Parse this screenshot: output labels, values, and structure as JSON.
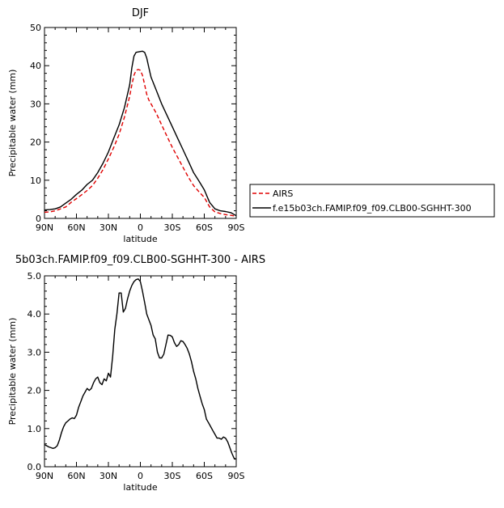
{
  "chart_data": [
    {
      "type": "line",
      "title": "DJF",
      "xlabel": "latitude",
      "ylabel": "Precipitable water (mm)",
      "x_categories": [
        "90N",
        "60N",
        "30N",
        "0",
        "30S",
        "60S",
        "90S"
      ],
      "x_ticks": [
        90,
        60,
        30,
        0,
        -30,
        -60,
        -90
      ],
      "xlim": [
        90,
        -90
      ],
      "ylim": [
        0,
        50
      ],
      "y_ticks": [
        0,
        10,
        20,
        30,
        40,
        50
      ],
      "y_tick_labels": [
        "0",
        "10",
        "20",
        "30",
        "40",
        "50"
      ],
      "grid": false,
      "legend": "right",
      "series": [
        {
          "name": "AIRS",
          "color": "#e00000",
          "dash": "dashed",
          "x": [
            90,
            85,
            80,
            75,
            70,
            65,
            60,
            55,
            50,
            45,
            40,
            35,
            30,
            25,
            20,
            15,
            10,
            8,
            6,
            4,
            2,
            0,
            -2,
            -4,
            -6,
            -8,
            -10,
            -15,
            -20,
            -25,
            -30,
            -35,
            -40,
            -45,
            -50,
            -55,
            -60,
            -65,
            -70,
            -75,
            -80,
            -85,
            -90
          ],
          "y": [
            1.6,
            1.7,
            2.0,
            2.5,
            3.0,
            4.2,
            5.2,
            6.2,
            7.3,
            8.6,
            10.5,
            12.8,
            15.6,
            18.6,
            22.0,
            26.5,
            32.0,
            35.0,
            37.5,
            38.8,
            39.0,
            38.8,
            37.5,
            35.0,
            32.5,
            31.0,
            30.0,
            27.5,
            24.5,
            21.5,
            18.6,
            16.0,
            13.4,
            10.8,
            8.6,
            7.0,
            5.5,
            3.0,
            1.7,
            1.3,
            1.0,
            0.8,
            0.6
          ]
        },
        {
          "name": "f.e15b03ch.FAMIP.f09_f09.CLB00-SGHHT-300",
          "color": "#000000",
          "dash": "solid",
          "x": [
            90,
            85,
            80,
            75,
            70,
            65,
            60,
            55,
            50,
            45,
            40,
            35,
            30,
            25,
            20,
            15,
            10,
            8,
            6,
            4,
            2,
            0,
            -2,
            -4,
            -6,
            -8,
            -10,
            -15,
            -20,
            -25,
            -30,
            -35,
            -40,
            -45,
            -50,
            -55,
            -60,
            -65,
            -70,
            -75,
            -80,
            -85,
            -90
          ],
          "y": [
            2.2,
            2.3,
            2.5,
            3.0,
            4.0,
            5.0,
            6.3,
            7.4,
            8.9,
            10.0,
            12.0,
            14.5,
            17.4,
            21.0,
            24.5,
            29.0,
            35.0,
            39.5,
            42.5,
            43.5,
            43.6,
            43.7,
            43.8,
            43.5,
            42.0,
            39.5,
            37.0,
            33.5,
            30.0,
            27.0,
            24.0,
            21.0,
            18.0,
            15.0,
            12.0,
            9.8,
            7.5,
            4.2,
            2.5,
            2.0,
            1.8,
            1.5,
            0.7
          ]
        }
      ]
    },
    {
      "type": "line",
      "title": "5b03ch.FAMIP.f09_f09.CLB00-SGHHT-300 - AIRS",
      "xlabel": "latitude",
      "ylabel": "Precipitable water (mm)",
      "x_categories": [
        "90N",
        "60N",
        "30N",
        "0",
        "30S",
        "60S",
        "90S"
      ],
      "x_ticks": [
        90,
        60,
        30,
        0,
        -30,
        -60,
        -90
      ],
      "xlim": [
        90,
        -90
      ],
      "ylim": [
        0,
        5
      ],
      "y_ticks": [
        0,
        1,
        2,
        3,
        4,
        5
      ],
      "y_tick_labels": [
        "0.0",
        "1.0",
        "2.0",
        "3.0",
        "4.0",
        "5.0"
      ],
      "grid": false,
      "series": [
        {
          "color": "#000000",
          "dash": "solid",
          "x": [
            90,
            88,
            86,
            84,
            82,
            80,
            78,
            76,
            74,
            72,
            70,
            68,
            66,
            64,
            62,
            60,
            58,
            56,
            54,
            52,
            50,
            48,
            46,
            44,
            42,
            40,
            38,
            36,
            34,
            32,
            30,
            28,
            26,
            24,
            22,
            20,
            18,
            16,
            14,
            12,
            10,
            8,
            6,
            4,
            2,
            0,
            -2,
            -4,
            -6,
            -8,
            -10,
            -12,
            -14,
            -16,
            -18,
            -20,
            -22,
            -24,
            -26,
            -28,
            -30,
            -32,
            -34,
            -36,
            -38,
            -40,
            -42,
            -44,
            -46,
            -48,
            -50,
            -52,
            -54,
            -56,
            -58,
            -60,
            -62,
            -64,
            -66,
            -68,
            -70,
            -72,
            -74,
            -76,
            -78,
            -80,
            -82,
            -84,
            -86,
            -88,
            -90
          ],
          "y": [
            0.58,
            0.55,
            0.52,
            0.5,
            0.48,
            0.5,
            0.55,
            0.7,
            0.9,
            1.05,
            1.15,
            1.2,
            1.25,
            1.28,
            1.26,
            1.35,
            1.55,
            1.7,
            1.85,
            1.95,
            2.05,
            2.0,
            2.05,
            2.2,
            2.3,
            2.35,
            2.2,
            2.15,
            2.3,
            2.25,
            2.45,
            2.35,
            2.9,
            3.6,
            4.0,
            4.55,
            4.55,
            4.05,
            4.15,
            4.4,
            4.6,
            4.75,
            4.85,
            4.9,
            4.92,
            4.85,
            4.6,
            4.3,
            4.0,
            3.85,
            3.7,
            3.45,
            3.35,
            3.0,
            2.85,
            2.85,
            2.95,
            3.2,
            3.45,
            3.44,
            3.4,
            3.25,
            3.15,
            3.2,
            3.3,
            3.28,
            3.2,
            3.1,
            2.95,
            2.75,
            2.5,
            2.3,
            2.05,
            1.85,
            1.65,
            1.5,
            1.25,
            1.15,
            1.05,
            0.95,
            0.85,
            0.75,
            0.75,
            0.72,
            0.78,
            0.75,
            0.65,
            0.5,
            0.35,
            0.22,
            0.2
          ]
        }
      ]
    }
  ]
}
